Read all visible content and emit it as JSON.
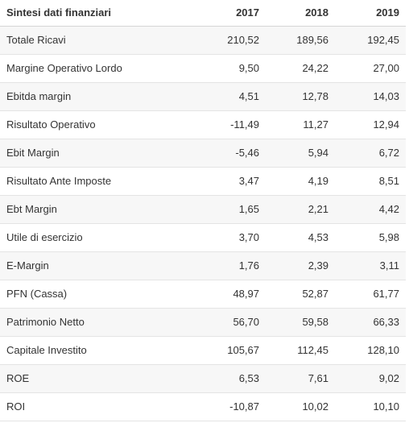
{
  "table": {
    "title": "Sintesi dati finanziari",
    "years": [
      "2017",
      "2018",
      "2019"
    ],
    "rows": [
      {
        "label": "Totale Ricavi",
        "values": [
          "210,52",
          "189,56",
          "192,45"
        ]
      },
      {
        "label": "Margine Operativo Lordo",
        "values": [
          "9,50",
          "24,22",
          "27,00"
        ]
      },
      {
        "label": "Ebitda margin",
        "values": [
          "4,51",
          "12,78",
          "14,03"
        ]
      },
      {
        "label": "Risultato Operativo",
        "values": [
          "-11,49",
          "11,27",
          "12,94"
        ]
      },
      {
        "label": "Ebit Margin",
        "values": [
          "-5,46",
          "5,94",
          "6,72"
        ]
      },
      {
        "label": "Risultato Ante Imposte",
        "values": [
          "3,47",
          "4,19",
          "8,51"
        ]
      },
      {
        "label": "Ebt Margin",
        "values": [
          "1,65",
          "2,21",
          "4,42"
        ]
      },
      {
        "label": "Utile di esercizio",
        "values": [
          "3,70",
          "4,53",
          "5,98"
        ]
      },
      {
        "label": "E-Margin",
        "values": [
          "1,76",
          "2,39",
          "3,11"
        ]
      },
      {
        "label": "PFN (Cassa)",
        "values": [
          "48,97",
          "52,87",
          "61,77"
        ]
      },
      {
        "label": "Patrimonio Netto",
        "values": [
          "56,70",
          "59,58",
          "66,33"
        ]
      },
      {
        "label": "Capitale Investito",
        "values": [
          "105,67",
          "112,45",
          "128,10"
        ]
      },
      {
        "label": "ROE",
        "values": [
          "6,53",
          "7,61",
          "9,02"
        ]
      },
      {
        "label": "ROI",
        "values": [
          "-10,87",
          "10,02",
          "10,10"
        ]
      }
    ]
  }
}
